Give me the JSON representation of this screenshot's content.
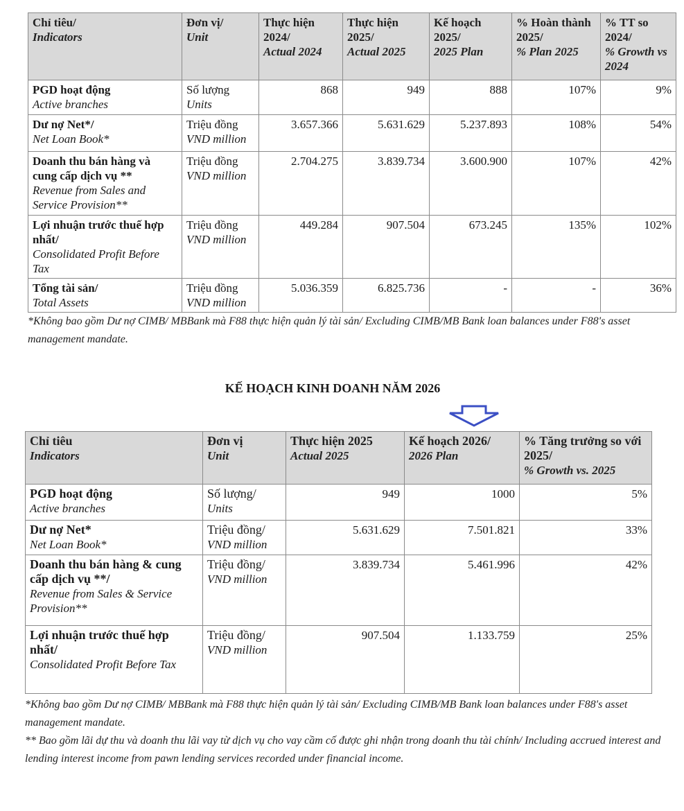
{
  "table1": {
    "headers": [
      {
        "vi": "Chỉ tiêu/",
        "en": "Indicators"
      },
      {
        "vi": "Đơn vị/",
        "en": "Unit"
      },
      {
        "vi": "Thực hiện 2024/",
        "en": "Actual 2024"
      },
      {
        "vi": "Thực hiện 2025/",
        "en": "Actual 2025"
      },
      {
        "vi": "Kế hoạch 2025/",
        "en": "2025 Plan"
      },
      {
        "vi": "% Hoàn thành 2025/",
        "en": "% Plan 2025"
      },
      {
        "vi": "% TT so 2024/",
        "en": "% Growth vs 2024"
      }
    ],
    "rows": [
      {
        "vi": "PGD hoạt động",
        "en": "Active branches",
        "unit_vi": "Số lượng",
        "unit_en": "Units",
        "a2024": "868",
        "a2025": "949",
        "p2025": "888",
        "pct_plan": "107%",
        "growth": "9%"
      },
      {
        "vi": "Dư nợ Net*/",
        "en": "Net Loan Book*",
        "unit_vi": "Triệu đồng",
        "unit_en": "VND million",
        "a2024": "3.657.366",
        "a2025": "5.631.629",
        "p2025": "5.237.893",
        "pct_plan": "108%",
        "growth": "54%"
      },
      {
        "vi": "Doanh thu bán hàng và cung cấp dịch vụ **",
        "en": "Revenue from Sales and Service Provision**",
        "unit_vi": "Triệu đồng",
        "unit_en": "VND million",
        "a2024": "2.704.275",
        "a2025": "3.839.734",
        "p2025": "3.600.900",
        "pct_plan": "107%",
        "growth": "42%"
      },
      {
        "vi": "Lợi nhuận trước thuế hợp nhất/",
        "en": "Consolidated Profit Before Tax",
        "unit_vi": "Triệu đồng",
        "unit_en": "VND million",
        "a2024": "449.284",
        "a2025": "907.504",
        "p2025": "673.245",
        "pct_plan": "135%",
        "growth": "102%"
      },
      {
        "vi": "Tổng tài sản/",
        "en": "Total Assets",
        "unit_vi": "Triệu đồng",
        "unit_en": "VND million",
        "a2024": "5.036.359",
        "a2025": "6.825.736",
        "p2025": "-",
        "pct_plan": "-",
        "growth": "36%"
      }
    ],
    "note": "*Không bao gồm Dư nợ CIMB/ MBBank mà F88 thực hiện quản lý tài sản/ Excluding CIMB/MB Bank loan balances under F88's asset management mandate."
  },
  "section_title": "KẾ HOẠCH KINH DOANH NĂM 2026",
  "arrow_color": "#3b4fc4",
  "table2": {
    "headers": [
      {
        "vi": "Chỉ tiêu",
        "en": "Indicators"
      },
      {
        "vi": "Đơn vị",
        "en": "Unit"
      },
      {
        "vi": "Thực hiện 2025",
        "en": "Actual 2025"
      },
      {
        "vi": "Kế hoạch 2026/",
        "en": "2026 Plan"
      },
      {
        "vi": "% Tăng trưởng so với 2025/",
        "en": "% Growth vs. 2025"
      }
    ],
    "rows": [
      {
        "vi": "PGD hoạt động",
        "en": "Active branches",
        "unit_vi": "Số lượng/",
        "unit_en": "Units",
        "a2025": "949",
        "p2026": "1000",
        "growth": "5%"
      },
      {
        "vi": "Dư nợ Net*",
        "en": "Net Loan Book*",
        "unit_vi": "Triệu đồng/",
        "unit_en": "VND million",
        "a2025": "5.631.629",
        "p2026": "7.501.821",
        "growth": "33%"
      },
      {
        "vi": "Doanh thu bán hàng & cung cấp dịch vụ **/",
        "en": "Revenue from Sales & Service Provision**",
        "unit_vi": "Triệu đồng/",
        "unit_en": "VND million",
        "a2025": "3.839.734",
        "p2026": "5.461.996",
        "growth": "42%"
      },
      {
        "vi": "Lợi nhuận trước thuế hợp nhất/",
        "en": "Consolidated Profit Before Tax",
        "unit_vi": "Triệu đồng/",
        "unit_en": "VND million",
        "a2025": "907.504",
        "p2026": "1.133.759",
        "growth": "25%"
      }
    ],
    "note1": "*Không bao gồm Dư nợ CIMB/ MBBank mà F88 thực hiện quản lý tài sản/ Excluding CIMB/MB Bank loan balances under F88's asset management mandate.",
    "note2": "** Bao gồm lãi dự thu và doanh thu lãi vay từ dịch vụ cho vay cầm cố được ghi nhận trong doanh thu tài chính/ Including accrued interest and lending interest income from pawn lending services recorded under financial income."
  }
}
